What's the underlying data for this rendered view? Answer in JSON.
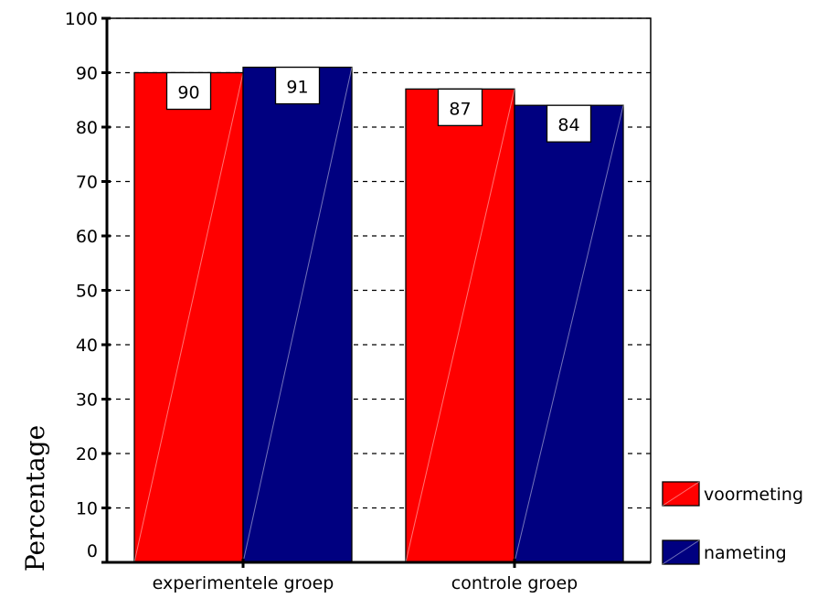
{
  "chart_data": {
    "type": "bar",
    "categories": [
      "experimentele groep",
      "controle groep"
    ],
    "series": [
      {
        "name": "voormeting",
        "values": [
          90,
          87
        ],
        "color": "#ff0000"
      },
      {
        "name": "nameting",
        "values": [
          91,
          84
        ],
        "color": "#000080"
      }
    ],
    "ylabel": "Percentage",
    "ylim": [
      0,
      100
    ],
    "yticks": [
      0,
      10,
      20,
      30,
      40,
      50,
      60,
      70,
      80,
      90,
      100
    ],
    "grid": "horizontal dashed",
    "legend_position": "right",
    "data_labels": true
  }
}
